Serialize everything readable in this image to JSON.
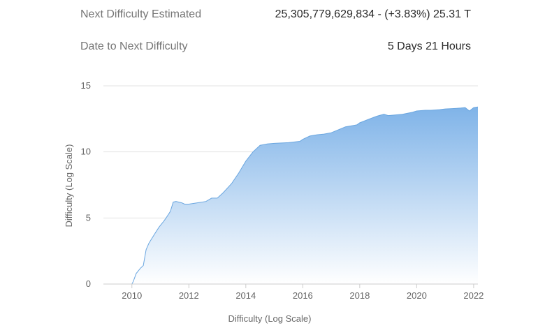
{
  "stats": {
    "next_difficulty_label": "Next Difficulty Estimated",
    "next_difficulty_value": "25,305,779,629,834 - (+3.83%) 25.31 T",
    "date_label": "Date to Next Difficulty",
    "date_value": "5 Days 21 Hours"
  },
  "colors": {
    "area_top": "#7fb3e8",
    "area_bottom": "#ffffff",
    "line": "#6aa6e0",
    "grid": "#e3e3e3",
    "axis": "#cccccc"
  },
  "chart_data": {
    "type": "area",
    "xlabel": "Difficulty (Log Scale)",
    "ylabel": "Difficulty (Log Scale)",
    "xlim": [
      2009.0,
      2022.15
    ],
    "ylim": [
      0,
      15
    ],
    "x_ticks": [
      2010,
      2012,
      2014,
      2016,
      2018,
      2020,
      2022
    ],
    "y_ticks": [
      0,
      5,
      10,
      15
    ],
    "grid": true,
    "series": [
      {
        "x": [
          2009.0,
          2010.0,
          2010.05,
          2010.15,
          2010.3,
          2010.4,
          2010.5,
          2010.6,
          2010.8,
          2010.95,
          2011.1,
          2011.2,
          2011.35,
          2011.45,
          2011.55,
          2011.75,
          2011.85,
          2012.0,
          2012.3,
          2012.6,
          2012.8,
          2013.0,
          2013.2,
          2013.5,
          2013.75,
          2014.0,
          2014.25,
          2014.5,
          2014.75,
          2015.0,
          2015.5,
          2015.9,
          2016.0,
          2016.25,
          2016.5,
          2016.75,
          2017.0,
          2017.5,
          2017.9,
          2018.0,
          2018.35,
          2018.6,
          2018.85,
          2019.0,
          2019.5,
          2019.85,
          2020.0,
          2020.3,
          2020.5,
          2020.8,
          2021.0,
          2021.25,
          2021.4,
          2021.55,
          2021.7,
          2021.85,
          2022.0,
          2022.15
        ],
        "y": [
          0.0,
          0.0,
          0.2,
          0.8,
          1.2,
          1.4,
          2.6,
          3.1,
          3.8,
          4.3,
          4.7,
          5.0,
          5.5,
          6.2,
          6.25,
          6.15,
          6.05,
          6.05,
          6.15,
          6.25,
          6.5,
          6.5,
          6.9,
          7.6,
          8.4,
          9.3,
          10.0,
          10.5,
          10.6,
          10.65,
          10.7,
          10.8,
          10.95,
          11.2,
          11.3,
          11.35,
          11.45,
          11.9,
          12.05,
          12.2,
          12.5,
          12.7,
          12.85,
          12.75,
          12.85,
          13.0,
          13.1,
          13.15,
          13.15,
          13.2,
          13.25,
          13.28,
          13.3,
          13.32,
          13.35,
          13.1,
          13.35,
          13.4
        ]
      }
    ]
  }
}
